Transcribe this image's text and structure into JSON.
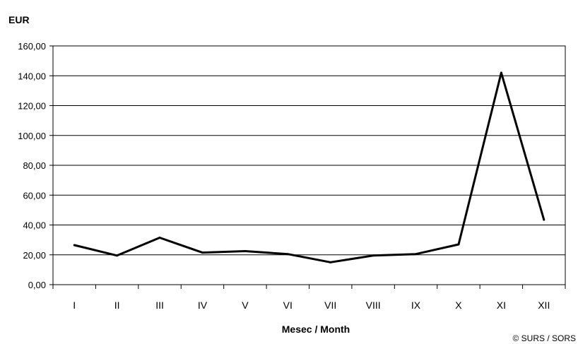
{
  "chart_data": {
    "type": "line",
    "title": "",
    "ylabel": "EUR",
    "xlabel": "Mesec / Month",
    "categories": [
      "I",
      "II",
      "III",
      "IV",
      "V",
      "VI",
      "VII",
      "VIII",
      "IX",
      "X",
      "XI",
      "XII"
    ],
    "series": [
      {
        "values": [
          26.5,
          19.5,
          31.5,
          21.5,
          22.5,
          20.5,
          15.0,
          19.5,
          20.5,
          27.0,
          142.0,
          43.5
        ]
      }
    ],
    "ylim": [
      0,
      160
    ],
    "y_ticks": [
      "0,00",
      "20,00",
      "40,00",
      "60,00",
      "80,00",
      "100,00",
      "120,00",
      "140,00",
      "160,00"
    ],
    "grid": true,
    "line_color": "#000000",
    "credit": "© SURS / SORS"
  }
}
